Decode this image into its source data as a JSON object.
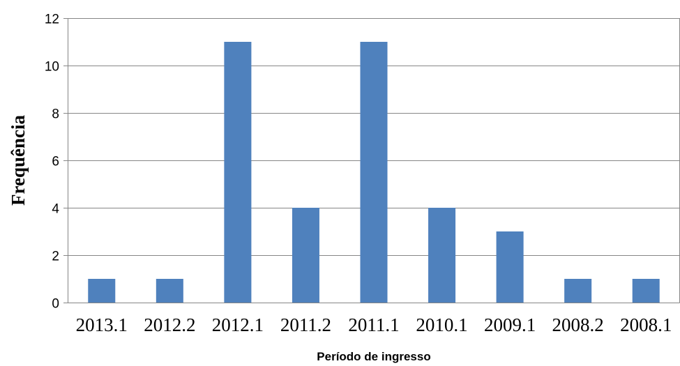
{
  "chart_data": {
    "type": "bar",
    "categories": [
      "2013.1",
      "2012.2",
      "2012.1",
      "2011.2",
      "2011.1",
      "2010.1",
      "2009.1",
      "2008.2",
      "2008.1"
    ],
    "values": [
      1,
      1,
      11,
      4,
      11,
      4,
      3,
      1,
      1
    ],
    "title": "",
    "xlabel": "Período de ingresso",
    "ylabel": "Frequência",
    "ylim": [
      0,
      12
    ],
    "yticks": [
      0,
      2,
      4,
      6,
      8,
      10,
      12
    ],
    "grid": true,
    "legend": "none",
    "bar_color": "#4f81bd",
    "grid_color": "#868686"
  }
}
